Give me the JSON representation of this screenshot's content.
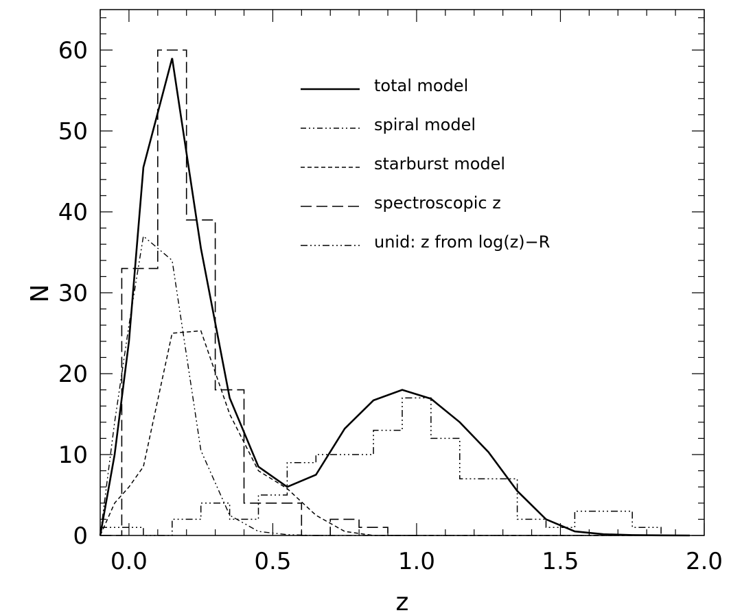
{
  "chart_data": {
    "type": "line",
    "title": "",
    "xlabel": "z",
    "ylabel": "N",
    "xlim": [
      -0.1,
      2.0
    ],
    "ylim": [
      0,
      65
    ],
    "grid": false,
    "legend_position": "top-right",
    "x_ticks": [
      {
        "value": 0.0,
        "label": "0.0"
      },
      {
        "value": 0.5,
        "label": "0.5"
      },
      {
        "value": 1.0,
        "label": "1.0"
      },
      {
        "value": 1.5,
        "label": "1.5"
      },
      {
        "value": 2.0,
        "label": "2.0"
      }
    ],
    "y_ticks": [
      {
        "value": 0,
        "label": "0"
      },
      {
        "value": 10,
        "label": "10"
      },
      {
        "value": 20,
        "label": "20"
      },
      {
        "value": 30,
        "label": "30"
      },
      {
        "value": 40,
        "label": "40"
      },
      {
        "value": 50,
        "label": "50"
      },
      {
        "value": 60,
        "label": "60"
      }
    ],
    "series": [
      {
        "name": "total model",
        "kind": "line",
        "style": "solid",
        "x": [
          -0.1,
          -0.05,
          0.0,
          0.05,
          0.15,
          0.25,
          0.35,
          0.45,
          0.55,
          0.65,
          0.75,
          0.85,
          0.95,
          1.05,
          1.15,
          1.25,
          1.35,
          1.45,
          1.55,
          1.65,
          1.75,
          1.85,
          1.95
        ],
        "y": [
          0,
          10,
          24,
          45.5,
          59,
          35.5,
          17,
          8.5,
          6,
          7.5,
          13.2,
          16.7,
          18,
          16.9,
          14,
          10.3,
          5.5,
          2,
          0.5,
          0.15,
          0.05,
          0.02,
          0
        ]
      },
      {
        "name": "spiral model",
        "kind": "line",
        "style": "dash-dot-dot",
        "x": [
          -0.1,
          -0.05,
          0.0,
          0.05,
          0.15,
          0.25,
          0.35,
          0.45,
          0.55,
          0.65,
          0.75,
          0.85,
          0.95,
          1.05,
          1.15,
          1.25,
          1.35,
          1.45,
          1.55,
          1.65,
          1.75,
          1.85,
          1.95
        ],
        "y": [
          0,
          14,
          26,
          37,
          34,
          10.5,
          2.5,
          0.5,
          0.1,
          0,
          0,
          0,
          0,
          0,
          0,
          0,
          0,
          0,
          0,
          0,
          0,
          0,
          0
        ]
      },
      {
        "name": "starburst model",
        "kind": "line",
        "style": "short-dash",
        "x": [
          -0.1,
          -0.05,
          0.0,
          0.05,
          0.15,
          0.25,
          0.35,
          0.45,
          0.55,
          0.65,
          0.75,
          0.85,
          0.95,
          1.05,
          1.15,
          1.25,
          1.35,
          1.45,
          1.55,
          1.65,
          1.75,
          1.85,
          1.95
        ],
        "y": [
          0,
          4,
          6,
          8.5,
          25,
          25.3,
          15,
          8,
          5.8,
          2.5,
          0.5,
          0,
          0,
          0,
          0,
          0,
          0,
          0,
          0,
          0,
          0,
          0,
          0
        ]
      },
      {
        "name": "spectroscopic z",
        "kind": "histogram",
        "style": "long-dash",
        "edges": [
          -0.1,
          -0.025,
          0.1,
          0.2,
          0.3,
          0.4,
          0.5,
          0.6,
          0.7,
          0.8,
          0.9,
          1.0
        ],
        "values": [
          0,
          33,
          60,
          39,
          18,
          4,
          4,
          0,
          2,
          1,
          0
        ]
      },
      {
        "name": "unid: z from log(z)−R",
        "kind": "histogram",
        "style": "dash-dot-dot-dot",
        "edges": [
          -0.1,
          0.05,
          0.1,
          0.15,
          0.25,
          0.35,
          0.45,
          0.55,
          0.65,
          0.75,
          0.85,
          0.95,
          1.05,
          1.15,
          1.25,
          1.35,
          1.45,
          1.55,
          1.65,
          1.75,
          1.85,
          1.95
        ],
        "values": [
          1,
          0,
          0,
          2,
          4,
          2,
          5,
          9,
          10,
          10,
          13,
          17,
          12,
          7,
          7,
          2,
          1,
          3,
          3,
          1,
          0
        ]
      }
    ]
  }
}
